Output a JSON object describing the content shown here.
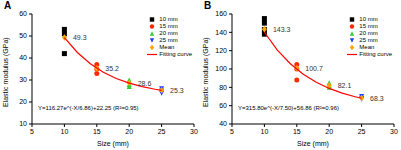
{
  "chart_data": [
    {
      "type": "scatter",
      "title": "A",
      "x_label": "Size (mm)",
      "y_label": "Elastic modulus (GPa)",
      "xlim": [
        5,
        30
      ],
      "xticks": [
        5,
        10,
        15,
        20,
        25,
        30
      ],
      "ylim": [
        10,
        60
      ],
      "yticks": [
        10,
        20,
        30,
        40,
        50,
        60
      ],
      "legend": "upper right",
      "annotation": "Y=116.27e^(-X/6.86)+22.25 (R²=0.95)",
      "series": [
        {
          "name": "10 mm",
          "color": "#000000",
          "marker": "square",
          "x": [
            10,
            10,
            10
          ],
          "values": [
            53,
            51,
            42
          ]
        },
        {
          "name": "15 mm",
          "color": "#ff2a00",
          "marker": "circle",
          "x": [
            15,
            15,
            15
          ],
          "values": [
            37,
            35,
            33
          ]
        },
        {
          "name": "20 mm",
          "color": "#33cc33",
          "marker": "triangle",
          "x": [
            20,
            20,
            20
          ],
          "values": [
            30,
            28,
            27
          ]
        },
        {
          "name": "25 mm",
          "color": "#1f3fff",
          "marker": "triangle-down",
          "x": [
            25,
            25,
            25
          ],
          "values": [
            26,
            25,
            24
          ]
        },
        {
          "name": "Mean",
          "color": "#ffa500",
          "marker": "diamond",
          "data_labels": true,
          "x": [
            10,
            15,
            20,
            25
          ],
          "values": [
            49.3,
            35.2,
            28.6,
            25.3
          ]
        },
        {
          "name": "Fitting curve",
          "type": "line",
          "color": "#ff0000",
          "line_style": "solid",
          "x": [
            10,
            12,
            14,
            16,
            18,
            20,
            22,
            24,
            25
          ],
          "values": [
            49.3,
            42.5,
            37.4,
            33.5,
            30.7,
            28.6,
            27.0,
            25.8,
            25.3
          ]
        }
      ]
    },
    {
      "type": "scatter",
      "title": "B",
      "x_label": "Size (mm)",
      "y_label": "Elastic modulus (GPa)",
      "xlim": [
        5,
        30
      ],
      "xticks": [
        5,
        10,
        15,
        20,
        25,
        30
      ],
      "ylim": [
        40,
        160
      ],
      "yticks": [
        40,
        60,
        80,
        100,
        120,
        140,
        160
      ],
      "legend": "upper right",
      "annotation": "Y=315.80e^(-X/7.50)+56.86 (R²=0.96)",
      "series": [
        {
          "name": "10 mm",
          "color": "#000000",
          "marker": "square",
          "x": [
            10,
            10,
            10,
            10
          ],
          "values": [
            155,
            150,
            143,
            138
          ]
        },
        {
          "name": "15 mm",
          "color": "#ff2a00",
          "marker": "circle",
          "x": [
            15,
            15,
            15
          ],
          "values": [
            105,
            100,
            88
          ]
        },
        {
          "name": "20 mm",
          "color": "#33cc33",
          "marker": "triangle",
          "x": [
            20,
            20,
            20
          ],
          "values": [
            85,
            82,
            80
          ]
        },
        {
          "name": "25 mm",
          "color": "#1f3fff",
          "marker": "triangle-down",
          "x": [
            25,
            25,
            25
          ],
          "values": [
            70,
            68,
            67
          ]
        },
        {
          "name": "Mean",
          "color": "#ffa500",
          "marker": "diamond",
          "data_labels": true,
          "x": [
            10,
            15,
            20,
            25
          ],
          "values": [
            143.3,
            100.7,
            82.1,
            68.3
          ]
        },
        {
          "name": "Fitting curve",
          "type": "line",
          "color": "#ff0000",
          "line_style": "solid",
          "x": [
            10,
            12,
            14,
            16,
            18,
            20,
            22,
            24,
            25
          ],
          "values": [
            140.1,
            120.6,
            105.7,
            94.3,
            85.5,
            78.8,
            73.7,
            69.7,
            68.1
          ]
        }
      ]
    }
  ]
}
